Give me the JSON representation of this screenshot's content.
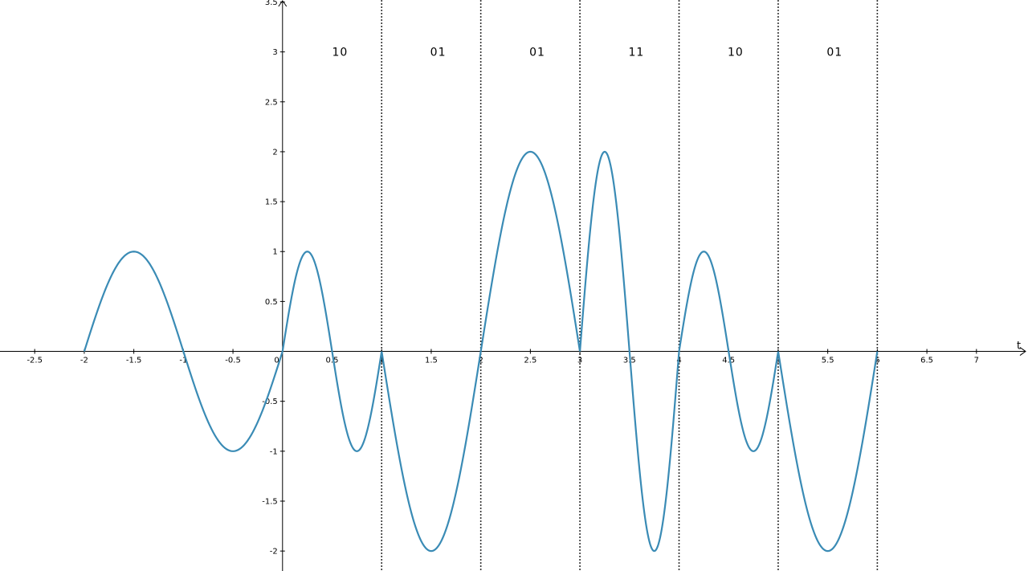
{
  "chart_data": {
    "type": "line",
    "title": "",
    "xlabel": "t",
    "ylabel": "",
    "xlim": [
      -2.85,
      7.52
    ],
    "ylim": [
      -2.2,
      3.52
    ],
    "grid": false,
    "x_ticks": [
      {
        "value": -2.5,
        "label": "-2.5"
      },
      {
        "value": -2,
        "label": "-2"
      },
      {
        "value": -1.5,
        "label": "-1.5"
      },
      {
        "value": -1,
        "label": "-1"
      },
      {
        "value": -0.5,
        "label": "-0.5"
      },
      {
        "value": 0,
        "label": "0"
      },
      {
        "value": 0.5,
        "label": "0.5"
      },
      {
        "value": 1,
        "label": "1"
      },
      {
        "value": 1.5,
        "label": "1.5"
      },
      {
        "value": 2,
        "label": "2"
      },
      {
        "value": 2.5,
        "label": "2.5"
      },
      {
        "value": 3,
        "label": "3"
      },
      {
        "value": 3.5,
        "label": "3.5"
      },
      {
        "value": 4,
        "label": "4"
      },
      {
        "value": 4.5,
        "label": "4.5"
      },
      {
        "value": 5,
        "label": "5"
      },
      {
        "value": 5.5,
        "label": "5.5"
      },
      {
        "value": 6,
        "label": "6"
      },
      {
        "value": 6.5,
        "label": "6.5"
      },
      {
        "value": 7,
        "label": "7"
      }
    ],
    "y_ticks": [
      {
        "value": -2,
        "label": "-2"
      },
      {
        "value": -1.5,
        "label": "-1.5"
      },
      {
        "value": -1,
        "label": "-1"
      },
      {
        "value": -0.5,
        "label": "-0.5"
      },
      {
        "value": 0.5,
        "label": "0.5"
      },
      {
        "value": 1,
        "label": "1"
      },
      {
        "value": 1.5,
        "label": "1.5"
      },
      {
        "value": 2,
        "label": "2"
      },
      {
        "value": 2.5,
        "label": "2.5"
      },
      {
        "value": 3,
        "label": "3"
      },
      {
        "value": 3.5,
        "label": "3.5"
      }
    ],
    "series": [
      {
        "color": "#3a8bb5",
        "segments": [
          {
            "t_start": -2,
            "t_end": 0,
            "amplitude": 1,
            "frequency": 0.5
          },
          {
            "t_start": 0,
            "t_end": 1,
            "amplitude": 1,
            "frequency": 1
          },
          {
            "t_start": 1,
            "t_end": 2,
            "amplitude": 2,
            "frequency": 0.5
          },
          {
            "t_start": 2,
            "t_end": 3,
            "amplitude": 2,
            "frequency": 0.5
          },
          {
            "t_start": 3,
            "t_end": 4,
            "amplitude": 2,
            "frequency": 1
          },
          {
            "t_start": 4,
            "t_end": 5,
            "amplitude": 1,
            "frequency": 1
          },
          {
            "t_start": 5,
            "t_end": 6,
            "amplitude": 2,
            "frequency": 0.5
          }
        ]
      }
    ],
    "symbol_boundaries": [
      1,
      2,
      3,
      4,
      5,
      6
    ],
    "symbol_labels": [
      {
        "t": 0.58,
        "y": 3.0,
        "text": "10"
      },
      {
        "t": 1.57,
        "y": 3.0,
        "text": "01"
      },
      {
        "t": 2.57,
        "y": 3.0,
        "text": "01"
      },
      {
        "t": 3.57,
        "y": 3.0,
        "text": "11"
      },
      {
        "t": 4.57,
        "y": 3.0,
        "text": "10"
      },
      {
        "t": 5.57,
        "y": 3.0,
        "text": "01"
      }
    ]
  }
}
